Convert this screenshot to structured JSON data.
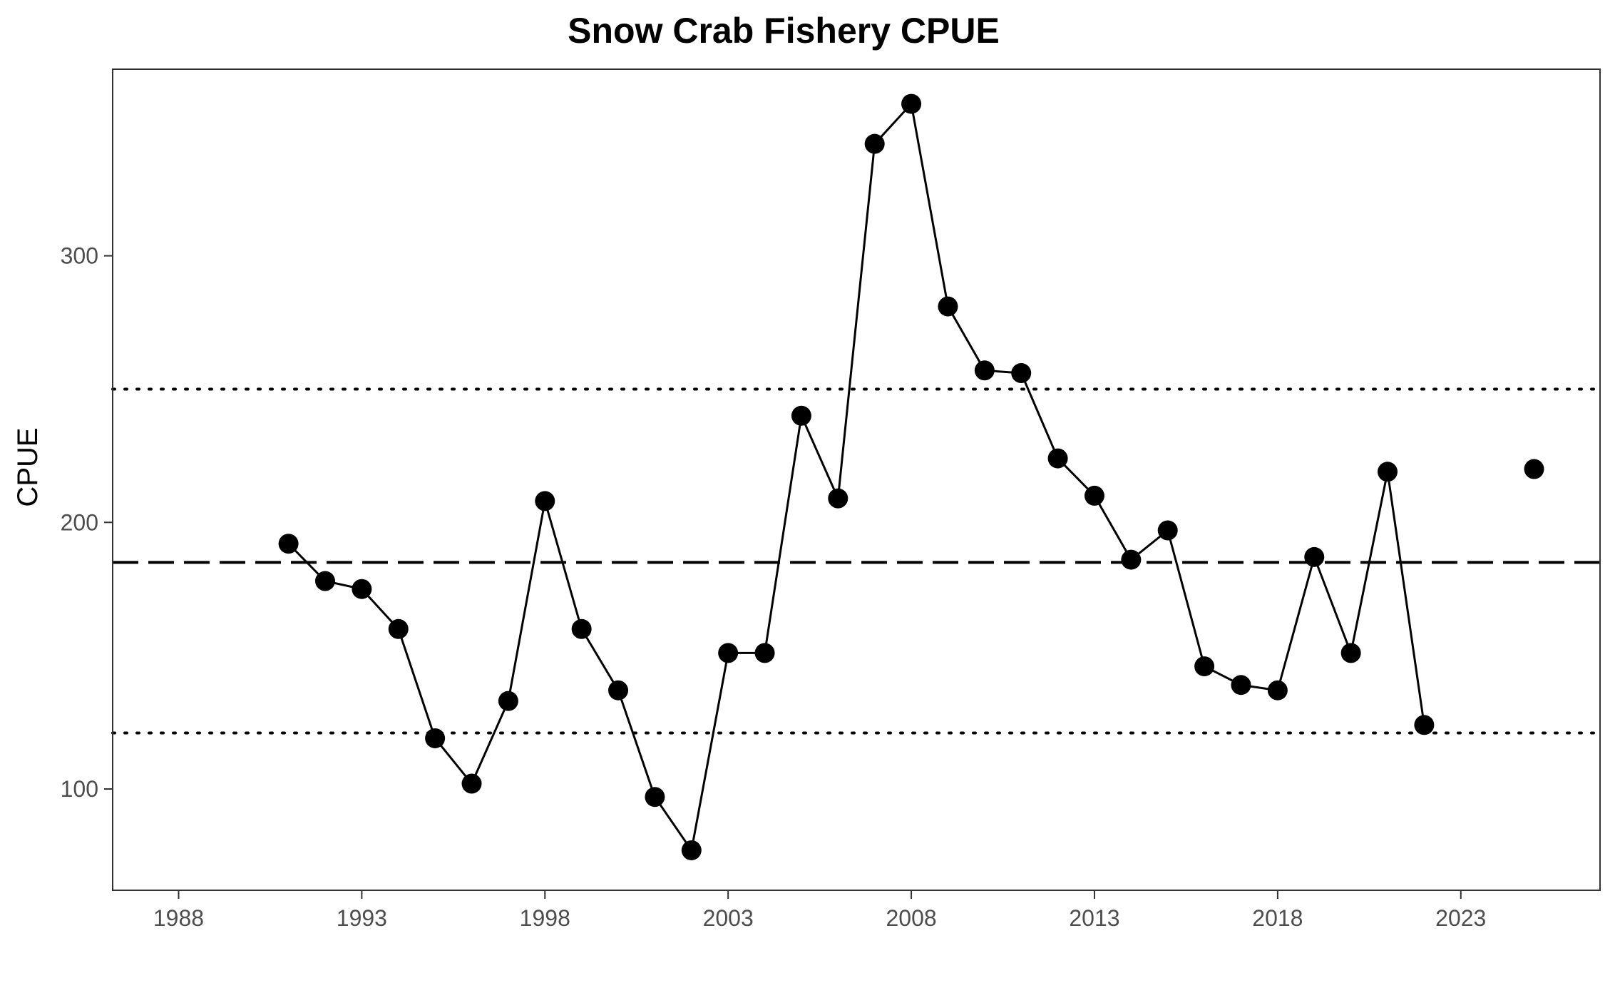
{
  "chart_data": {
    "type": "line",
    "title": "Snow Crab Fishery CPUE",
    "xlabel": "",
    "ylabel": "CPUE",
    "xlim": [
      1986.2,
      2026.8
    ],
    "ylim": [
      62,
      370
    ],
    "xticks": [
      1988,
      1993,
      1998,
      2003,
      2008,
      2013,
      2018,
      2023
    ],
    "yticks": [
      100,
      200,
      300
    ],
    "grid": false,
    "reference_lines": [
      {
        "style": "dashed",
        "y": 185
      },
      {
        "style": "dotted",
        "y": 250
      },
      {
        "style": "dotted",
        "y": 121
      }
    ],
    "series": [
      {
        "x": [
          1991,
          1992,
          1993,
          1994,
          1995,
          1996,
          1997,
          1998,
          1999,
          2000,
          2001,
          2002,
          2003,
          2004,
          2005,
          2006,
          2007,
          2008,
          2009,
          2010,
          2011,
          2012,
          2013,
          2014,
          2015,
          2016,
          2017,
          2018,
          2019,
          2020,
          2021,
          2022
        ],
        "values": [
          192,
          178,
          175,
          160,
          119,
          102,
          133,
          208,
          160,
          137,
          97,
          77,
          151,
          151,
          240,
          209,
          342,
          357,
          281,
          257,
          256,
          224,
          210,
          186,
          197,
          146,
          139,
          137,
          187,
          151,
          219,
          124
        ]
      },
      {
        "x": [
          2025
        ],
        "values": [
          220
        ]
      }
    ]
  }
}
